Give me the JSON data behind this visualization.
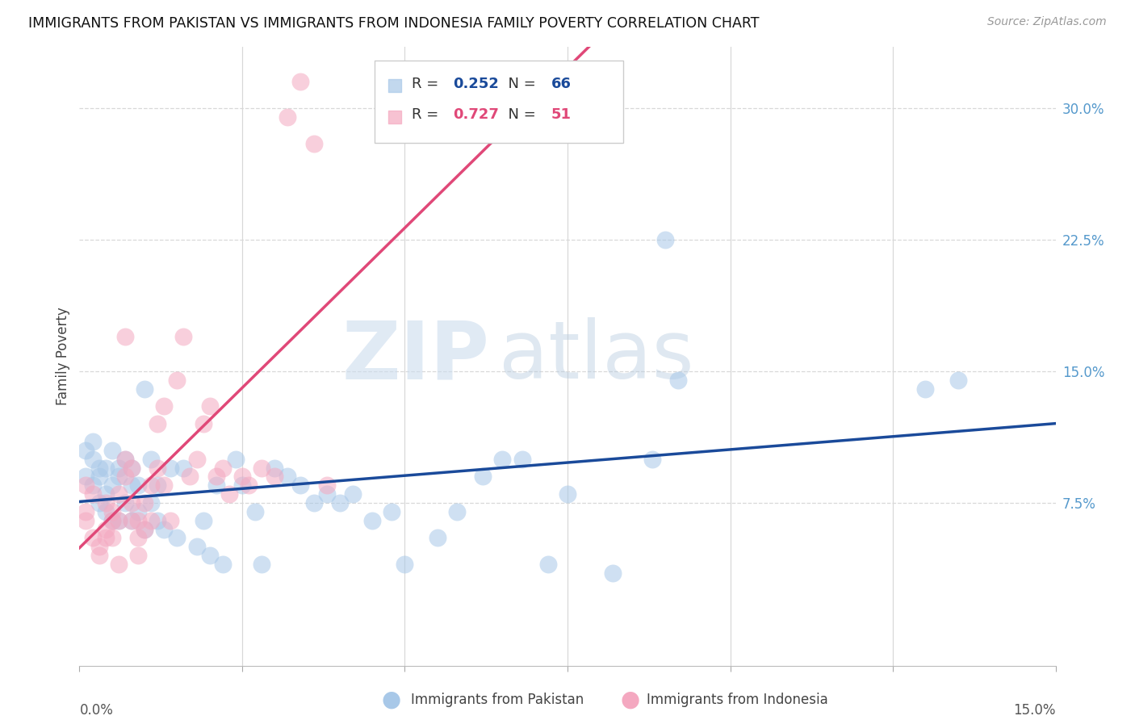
{
  "title": "IMMIGRANTS FROM PAKISTAN VS IMMIGRANTS FROM INDONESIA FAMILY POVERTY CORRELATION CHART",
  "source": "Source: ZipAtlas.com",
  "ylabel": "Family Poverty",
  "xmin": 0.0,
  "xmax": 0.15,
  "ymin": -0.018,
  "ymax": 0.335,
  "pakistan_R": 0.252,
  "pakistan_N": 66,
  "indonesia_R": 0.727,
  "indonesia_N": 51,
  "pakistan_color": "#a8c8e8",
  "indonesia_color": "#f4a8c0",
  "pakistan_line_color": "#1a4a9a",
  "indonesia_line_color": "#e04878",
  "ytick_vals": [
    0.075,
    0.15,
    0.225,
    0.3
  ],
  "ytick_labels": [
    "7.5%",
    "15.0%",
    "22.5%",
    "30.0%"
  ],
  "xtick_vals": [
    0.0,
    0.025,
    0.05,
    0.075,
    0.1,
    0.125,
    0.15
  ],
  "pakistan_x": [
    0.001,
    0.001,
    0.002,
    0.002,
    0.002,
    0.003,
    0.003,
    0.003,
    0.004,
    0.004,
    0.004,
    0.005,
    0.005,
    0.005,
    0.006,
    0.006,
    0.006,
    0.007,
    0.007,
    0.008,
    0.008,
    0.008,
    0.009,
    0.009,
    0.01,
    0.01,
    0.011,
    0.011,
    0.012,
    0.012,
    0.013,
    0.014,
    0.015,
    0.016,
    0.018,
    0.019,
    0.02,
    0.021,
    0.022,
    0.024,
    0.025,
    0.027,
    0.028,
    0.03,
    0.032,
    0.034,
    0.036,
    0.038,
    0.04,
    0.042,
    0.045,
    0.048,
    0.05,
    0.055,
    0.058,
    0.062,
    0.065,
    0.068,
    0.072,
    0.075,
    0.082,
    0.088,
    0.09,
    0.092,
    0.13,
    0.135
  ],
  "pakistan_y": [
    0.105,
    0.09,
    0.11,
    0.085,
    0.1,
    0.09,
    0.075,
    0.095,
    0.08,
    0.095,
    0.07,
    0.065,
    0.105,
    0.085,
    0.09,
    0.065,
    0.095,
    0.075,
    0.1,
    0.065,
    0.095,
    0.085,
    0.07,
    0.085,
    0.06,
    0.14,
    0.075,
    0.1,
    0.065,
    0.085,
    0.06,
    0.095,
    0.055,
    0.095,
    0.05,
    0.065,
    0.045,
    0.085,
    0.04,
    0.1,
    0.085,
    0.07,
    0.04,
    0.095,
    0.09,
    0.085,
    0.075,
    0.08,
    0.075,
    0.08,
    0.065,
    0.07,
    0.04,
    0.055,
    0.07,
    0.09,
    0.1,
    0.1,
    0.04,
    0.08,
    0.035,
    0.1,
    0.225,
    0.145,
    0.14,
    0.145
  ],
  "indonesia_x": [
    0.001,
    0.001,
    0.001,
    0.002,
    0.002,
    0.003,
    0.003,
    0.004,
    0.004,
    0.004,
    0.005,
    0.005,
    0.005,
    0.006,
    0.006,
    0.006,
    0.007,
    0.007,
    0.007,
    0.008,
    0.008,
    0.008,
    0.009,
    0.009,
    0.009,
    0.01,
    0.01,
    0.011,
    0.011,
    0.012,
    0.012,
    0.013,
    0.013,
    0.014,
    0.015,
    0.016,
    0.017,
    0.018,
    0.019,
    0.02,
    0.021,
    0.022,
    0.023,
    0.025,
    0.026,
    0.028,
    0.03,
    0.032,
    0.034,
    0.036,
    0.038
  ],
  "indonesia_y": [
    0.085,
    0.07,
    0.065,
    0.08,
    0.055,
    0.05,
    0.045,
    0.06,
    0.055,
    0.075,
    0.07,
    0.065,
    0.055,
    0.04,
    0.08,
    0.065,
    0.1,
    0.17,
    0.09,
    0.065,
    0.095,
    0.075,
    0.045,
    0.065,
    0.055,
    0.06,
    0.075,
    0.085,
    0.065,
    0.12,
    0.095,
    0.085,
    0.13,
    0.065,
    0.145,
    0.17,
    0.09,
    0.1,
    0.12,
    0.13,
    0.09,
    0.095,
    0.08,
    0.09,
    0.085,
    0.095,
    0.09,
    0.295,
    0.315,
    0.28,
    0.085
  ]
}
